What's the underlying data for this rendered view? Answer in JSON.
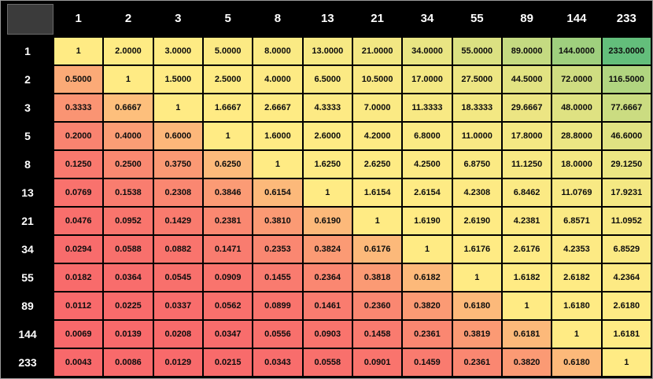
{
  "colors": {
    "header_bg": "#000000",
    "header_text": "#ffffff",
    "grid_line": "#000000",
    "cell_text": "#0d0d0d",
    "corner_fill": "#3b3b3b",
    "corner_border": "#6a6a6a",
    "page_border": "#9a9a9a"
  },
  "chart_data": {
    "type": "heatmap",
    "description": "Matrix of Fibonacci number ratios (column header divided by row header), shaded with a red-yellow-green 3-color scale",
    "x_categories": [
      "1",
      "2",
      "3",
      "5",
      "8",
      "13",
      "21",
      "34",
      "55",
      "89",
      "144",
      "233"
    ],
    "y_categories": [
      "1",
      "2",
      "3",
      "5",
      "8",
      "13",
      "21",
      "34",
      "55",
      "89",
      "144",
      "233"
    ],
    "values": [
      [
        "1",
        "2.0000",
        "3.0000",
        "5.0000",
        "8.0000",
        "13.0000",
        "21.0000",
        "34.0000",
        "55.0000",
        "89.0000",
        "144.0000",
        "233.0000"
      ],
      [
        "0.5000",
        "1",
        "1.5000",
        "2.5000",
        "4.0000",
        "6.5000",
        "10.5000",
        "17.0000",
        "27.5000",
        "44.5000",
        "72.0000",
        "116.5000"
      ],
      [
        "0.3333",
        "0.6667",
        "1",
        "1.6667",
        "2.6667",
        "4.3333",
        "7.0000",
        "11.3333",
        "18.3333",
        "29.6667",
        "48.0000",
        "77.6667"
      ],
      [
        "0.2000",
        "0.4000",
        "0.6000",
        "1",
        "1.6000",
        "2.6000",
        "4.2000",
        "6.8000",
        "11.0000",
        "17.8000",
        "28.8000",
        "46.6000"
      ],
      [
        "0.1250",
        "0.2500",
        "0.3750",
        "0.6250",
        "1",
        "1.6250",
        "2.6250",
        "4.2500",
        "6.8750",
        "11.1250",
        "18.0000",
        "29.1250"
      ],
      [
        "0.0769",
        "0.1538",
        "0.2308",
        "0.3846",
        "0.6154",
        "1",
        "1.6154",
        "2.6154",
        "4.2308",
        "6.8462",
        "11.0769",
        "17.9231"
      ],
      [
        "0.0476",
        "0.0952",
        "0.1429",
        "0.2381",
        "0.3810",
        "0.6190",
        "1",
        "1.6190",
        "2.6190",
        "4.2381",
        "6.8571",
        "11.0952"
      ],
      [
        "0.0294",
        "0.0588",
        "0.0882",
        "0.1471",
        "0.2353",
        "0.3824",
        "0.6176",
        "1",
        "1.6176",
        "2.6176",
        "4.2353",
        "6.8529"
      ],
      [
        "0.0182",
        "0.0364",
        "0.0545",
        "0.0909",
        "0.1455",
        "0.2364",
        "0.3818",
        "0.6182",
        "1",
        "1.6182",
        "2.6182",
        "4.2364"
      ],
      [
        "0.0112",
        "0.0225",
        "0.0337",
        "0.0562",
        "0.0899",
        "0.1461",
        "0.2360",
        "0.3820",
        "0.6180",
        "1",
        "1.6180",
        "2.6180"
      ],
      [
        "0.0069",
        "0.0139",
        "0.0208",
        "0.0347",
        "0.0556",
        "0.0903",
        "0.1458",
        "0.2361",
        "0.3819",
        "0.6181",
        "1",
        "1.6181"
      ],
      [
        "0.0043",
        "0.0086",
        "0.0129",
        "0.0215",
        "0.0343",
        "0.0558",
        "0.0901",
        "0.1459",
        "0.2361",
        "0.3820",
        "0.6180",
        "1"
      ]
    ],
    "color_scale": {
      "min_value": 0.0043,
      "mid_value": 1,
      "max_value": 233,
      "min_color": "#F8696B",
      "mid_color": "#FFEB84",
      "max_color": "#63BE7B"
    }
  }
}
